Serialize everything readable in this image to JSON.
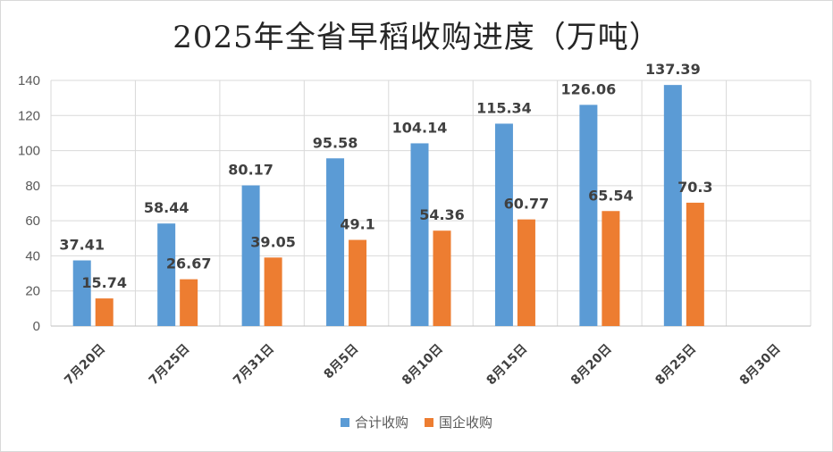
{
  "chart_data": {
    "type": "bar",
    "title": "2025年全省早稻收购进度（万吨）",
    "categories": [
      "7月20日",
      "7月25日",
      "7月31日",
      "8月5日",
      "8月10日",
      "8月15日",
      "8月20日",
      "8月25日",
      "8月30日"
    ],
    "series": [
      {
        "name": "合计收购",
        "color": "#5b9bd5",
        "values": [
          37.41,
          58.44,
          80.17,
          95.58,
          104.14,
          115.34,
          126.06,
          137.39,
          null
        ]
      },
      {
        "name": "国企收购",
        "color": "#ed7d31",
        "values": [
          15.74,
          26.67,
          39.05,
          49.1,
          54.36,
          60.77,
          65.54,
          70.3,
          null
        ]
      }
    ],
    "data_labels": [
      [
        "37.41",
        "58.44",
        "80.17",
        "95.58",
        "104.14",
        "115.34",
        "126.06",
        "137.39",
        null
      ],
      [
        "15.74",
        "26.67",
        "39.05",
        "49.1",
        "54.36",
        "60.77",
        "65.54",
        "70.3",
        null
      ]
    ],
    "yticks": [
      "0",
      "20",
      "40",
      "60",
      "80",
      "100",
      "120",
      "140"
    ],
    "ylim": [
      0,
      140
    ],
    "xlabel": "",
    "ylabel": "",
    "grid": true,
    "legend_position": "bottom",
    "gridline_color": "#d9d9d9"
  }
}
